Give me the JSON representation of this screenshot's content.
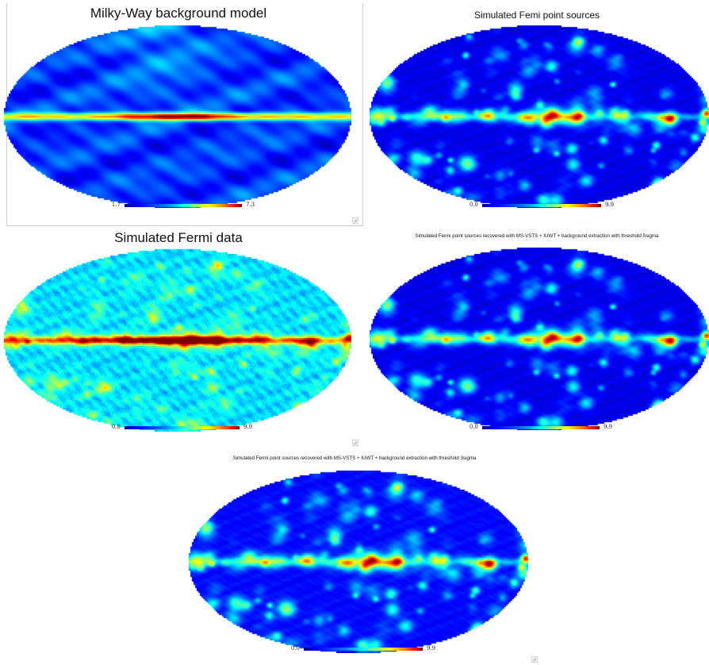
{
  "panels": [
    {
      "id": "background",
      "title": "Milky-Way background model",
      "colorbar": {
        "min": "1.7",
        "max": "7.3"
      }
    },
    {
      "id": "sources",
      "title": "Simulated Femi point sources",
      "colorbar": {
        "min": "0.0",
        "max": "9.9"
      }
    },
    {
      "id": "data",
      "title": "Simulated Fermi data",
      "colorbar": {
        "min": "0.0",
        "max": "9.9"
      }
    },
    {
      "id": "recovered5",
      "title": "Simulated Fermi point sources recovered with MS-VSTS + IUWT + background extraction with threshold 5sigma",
      "colorbar": {
        "min": "0.0",
        "max": "9.9"
      }
    },
    {
      "id": "recovered3",
      "title": "Simulated Fermi point sources recovered with MS-VSTS + IUWT + background extraction with threshold 3sigma",
      "colorbar": {
        "min": "0.0",
        "max": "9.9"
      }
    }
  ],
  "colormap": "jet",
  "projection": "Mollweide"
}
